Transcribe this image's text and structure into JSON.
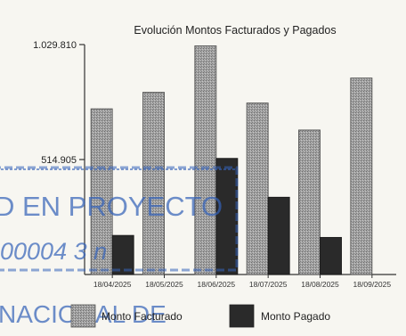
{
  "stamp": {
    "line1": "D EN PROYECTO",
    "line2": "00004 3 n",
    "line3": "NACIONAL DE",
    "color": "#3563b9"
  },
  "chart_data": {
    "type": "bar",
    "title": "Evolución Montos Facturados y Pagados",
    "xlabel": "",
    "ylabel": "",
    "categories": [
      "18/04/2025",
      "18/05/2025",
      "18/06/2025",
      "18/07/2025",
      "18/08/2025",
      "18/09/2025"
    ],
    "ylim": [
      0,
      1029810
    ],
    "yticks": [
      514905,
      1029810
    ],
    "ytick_labels": [
      "514.905",
      "1.029.810"
    ],
    "legend_position": "bottom",
    "grid": false,
    "series": [
      {
        "name": "Monto Facturado",
        "color": "#9a9a9a",
        "hatch": true,
        "values": [
          742000,
          816000,
          1024000,
          768000,
          647000,
          880000
        ]
      },
      {
        "name": "Monto Pagado",
        "color": "#2a2a2a",
        "hatch": false,
        "values": [
          175000,
          null,
          520000,
          346000,
          166000,
          null
        ]
      }
    ]
  }
}
